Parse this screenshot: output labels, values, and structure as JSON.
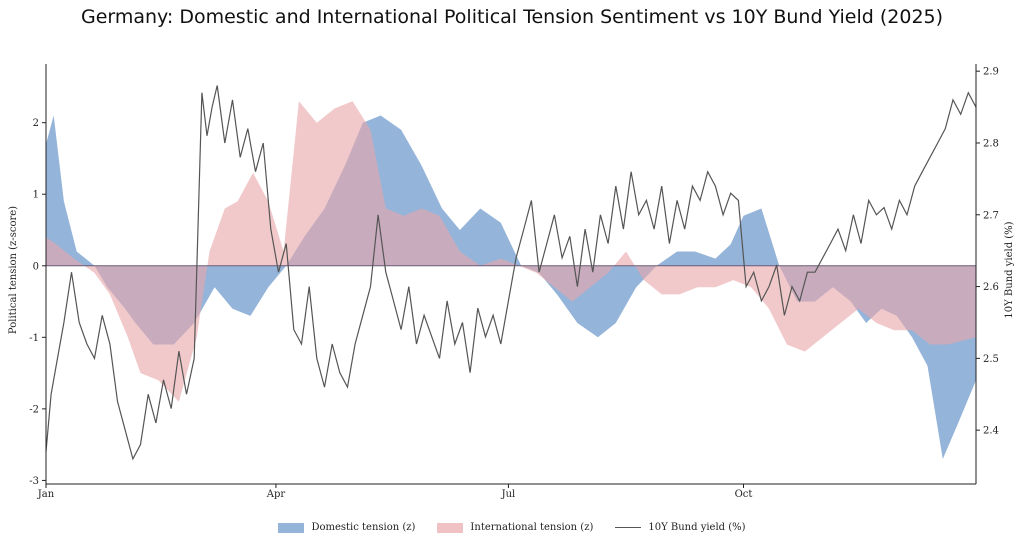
{
  "chart_data": {
    "type": "area",
    "title": "Germany: Domestic and International Political Tension Sentiment vs 10Y Bund Yield (2025)",
    "ylabel": "Political tension (z-score)",
    "y2label": "10Y Bund yield (%)",
    "ylim": [
      -3.05,
      2.82
    ],
    "y2lim": [
      2.325,
      2.91
    ],
    "yticks": [
      "-3",
      "-2",
      "-1",
      "0",
      "1",
      "2"
    ],
    "y2ticks": [
      "2.4",
      "2.5",
      "2.6",
      "2.7",
      "2.8",
      "2.9"
    ],
    "xlim": [
      "2025-01-01",
      "2025-12-31"
    ],
    "xticks": [
      {
        "date": "2025-01-01",
        "label": "Jan"
      },
      {
        "date": "2025-04-01",
        "label": "Apr"
      },
      {
        "date": "2025-07-01",
        "label": "Jul"
      },
      {
        "date": "2025-10-01",
        "label": "Oct"
      }
    ],
    "legend_position": "bottom-center",
    "grid": false,
    "series": [
      {
        "name": "Domestic tension (z)",
        "type": "area",
        "axis": "left",
        "color": "#5b8cc4",
        "x": [
          "2025-01-01",
          "2025-01-04",
          "2025-01-08",
          "2025-01-13",
          "2025-01-20",
          "2025-01-25",
          "2025-02-01",
          "2025-02-05",
          "2025-02-12",
          "2025-02-20",
          "2025-02-28",
          "2025-03-08",
          "2025-03-15",
          "2025-03-22",
          "2025-03-29",
          "2025-04-05",
          "2025-04-12",
          "2025-04-20",
          "2025-04-28",
          "2025-05-05",
          "2025-05-12",
          "2025-05-20",
          "2025-05-28",
          "2025-06-05",
          "2025-06-12",
          "2025-06-20",
          "2025-06-28",
          "2025-07-06",
          "2025-07-13",
          "2025-07-20",
          "2025-07-28",
          "2025-08-05",
          "2025-08-12",
          "2025-08-20",
          "2025-08-28",
          "2025-09-05",
          "2025-09-12",
          "2025-09-20",
          "2025-09-26",
          "2025-10-01",
          "2025-10-08",
          "2025-10-15",
          "2025-10-22",
          "2025-10-29",
          "2025-11-05",
          "2025-11-12",
          "2025-11-18",
          "2025-11-24",
          "2025-11-30",
          "2025-12-06",
          "2025-12-12",
          "2025-12-18",
          "2025-12-24",
          "2025-12-31"
        ],
        "y": [
          1.7,
          2.1,
          0.9,
          0.2,
          0.0,
          -0.3,
          -0.6,
          -0.8,
          -1.1,
          -1.1,
          -0.8,
          -0.3,
          -0.6,
          -0.7,
          -0.3,
          0.0,
          0.4,
          0.8,
          1.4,
          2.0,
          2.1,
          1.9,
          1.4,
          0.8,
          0.5,
          0.8,
          0.6,
          0.0,
          -0.1,
          -0.4,
          -0.8,
          -1.0,
          -0.8,
          -0.3,
          0.0,
          0.2,
          0.2,
          0.1,
          0.3,
          0.7,
          0.8,
          0.0,
          -0.5,
          -0.5,
          -0.3,
          -0.5,
          -0.8,
          -0.6,
          -0.7,
          -1.0,
          -1.4,
          -2.7,
          -2.2,
          -1.6
        ]
      },
      {
        "name": "International tension (z)",
        "type": "area",
        "axis": "left",
        "color": "#e9a8ab",
        "x": [
          "2025-01-01",
          "2025-01-05",
          "2025-01-12",
          "2025-01-20",
          "2025-01-26",
          "2025-02-02",
          "2025-02-07",
          "2025-02-14",
          "2025-02-22",
          "2025-03-01",
          "2025-03-06",
          "2025-03-12",
          "2025-03-17",
          "2025-03-23",
          "2025-03-29",
          "2025-04-04",
          "2025-04-10",
          "2025-04-17",
          "2025-04-24",
          "2025-05-01",
          "2025-05-08",
          "2025-05-14",
          "2025-05-21",
          "2025-05-28",
          "2025-06-04",
          "2025-06-12",
          "2025-06-20",
          "2025-06-28",
          "2025-07-05",
          "2025-07-12",
          "2025-07-19",
          "2025-07-26",
          "2025-08-02",
          "2025-08-09",
          "2025-08-16",
          "2025-08-23",
          "2025-08-30",
          "2025-09-06",
          "2025-09-13",
          "2025-09-20",
          "2025-09-27",
          "2025-10-04",
          "2025-10-11",
          "2025-10-18",
          "2025-10-25",
          "2025-11-01",
          "2025-11-08",
          "2025-11-15",
          "2025-11-22",
          "2025-11-29",
          "2025-12-06",
          "2025-12-13",
          "2025-12-20",
          "2025-12-31"
        ],
        "y": [
          0.4,
          0.3,
          0.1,
          -0.1,
          -0.4,
          -1.0,
          -1.5,
          -1.6,
          -1.9,
          -1.0,
          0.2,
          0.8,
          0.9,
          1.3,
          0.9,
          0.2,
          2.3,
          2.0,
          2.2,
          2.3,
          1.9,
          0.8,
          0.7,
          0.8,
          0.7,
          0.2,
          0.0,
          0.1,
          0.0,
          -0.1,
          -0.3,
          -0.5,
          -0.3,
          -0.1,
          0.2,
          -0.2,
          -0.4,
          -0.4,
          -0.3,
          -0.3,
          -0.2,
          -0.3,
          -0.6,
          -1.1,
          -1.2,
          -1.0,
          -0.8,
          -0.6,
          -0.8,
          -0.9,
          -0.9,
          -1.1,
          -1.1,
          -1.0
        ]
      },
      {
        "name": "10Y Bund yield (%)",
        "type": "line",
        "axis": "right",
        "color": "#555555",
        "x": [
          "2025-01-01",
          "2025-01-03",
          "2025-01-05",
          "2025-01-08",
          "2025-01-11",
          "2025-01-14",
          "2025-01-17",
          "2025-01-20",
          "2025-01-23",
          "2025-01-26",
          "2025-01-29",
          "2025-02-01",
          "2025-02-04",
          "2025-02-07",
          "2025-02-10",
          "2025-02-13",
          "2025-02-16",
          "2025-02-19",
          "2025-02-22",
          "2025-02-25",
          "2025-02-28",
          "2025-03-03",
          "2025-03-05",
          "2025-03-07",
          "2025-03-09",
          "2025-03-12",
          "2025-03-15",
          "2025-03-18",
          "2025-03-21",
          "2025-03-24",
          "2025-03-27",
          "2025-03-30",
          "2025-04-02",
          "2025-04-05",
          "2025-04-08",
          "2025-04-11",
          "2025-04-14",
          "2025-04-17",
          "2025-04-20",
          "2025-04-23",
          "2025-04-26",
          "2025-04-29",
          "2025-05-02",
          "2025-05-05",
          "2025-05-08",
          "2025-05-11",
          "2025-05-14",
          "2025-05-17",
          "2025-05-20",
          "2025-05-23",
          "2025-05-26",
          "2025-05-29",
          "2025-06-01",
          "2025-06-04",
          "2025-06-07",
          "2025-06-10",
          "2025-06-13",
          "2025-06-16",
          "2025-06-19",
          "2025-06-22",
          "2025-06-25",
          "2025-06-28",
          "2025-07-01",
          "2025-07-04",
          "2025-07-07",
          "2025-07-10",
          "2025-07-13",
          "2025-07-16",
          "2025-07-19",
          "2025-07-22",
          "2025-07-25",
          "2025-07-28",
          "2025-07-31",
          "2025-08-03",
          "2025-08-06",
          "2025-08-09",
          "2025-08-12",
          "2025-08-15",
          "2025-08-18",
          "2025-08-21",
          "2025-08-24",
          "2025-08-27",
          "2025-08-30",
          "2025-09-02",
          "2025-09-05",
          "2025-09-08",
          "2025-09-11",
          "2025-09-14",
          "2025-09-17",
          "2025-09-20",
          "2025-09-23",
          "2025-09-26",
          "2025-09-29",
          "2025-10-02",
          "2025-10-05",
          "2025-10-08",
          "2025-10-11",
          "2025-10-14",
          "2025-10-17",
          "2025-10-20",
          "2025-10-23",
          "2025-10-26",
          "2025-10-29",
          "2025-11-01",
          "2025-11-04",
          "2025-11-07",
          "2025-11-10",
          "2025-11-13",
          "2025-11-16",
          "2025-11-19",
          "2025-11-22",
          "2025-11-25",
          "2025-11-28",
          "2025-12-01",
          "2025-12-04",
          "2025-12-07",
          "2025-12-10",
          "2025-12-13",
          "2025-12-16",
          "2025-12-19",
          "2025-12-22",
          "2025-12-25",
          "2025-12-28",
          "2025-12-31"
        ],
        "y": [
          2.37,
          2.45,
          2.49,
          2.55,
          2.62,
          2.55,
          2.52,
          2.5,
          2.56,
          2.52,
          2.44,
          2.4,
          2.36,
          2.38,
          2.45,
          2.41,
          2.47,
          2.43,
          2.51,
          2.45,
          2.5,
          2.87,
          2.81,
          2.85,
          2.88,
          2.8,
          2.86,
          2.78,
          2.82,
          2.76,
          2.8,
          2.68,
          2.62,
          2.66,
          2.54,
          2.52,
          2.6,
          2.5,
          2.46,
          2.52,
          2.48,
          2.46,
          2.52,
          2.56,
          2.6,
          2.7,
          2.62,
          2.58,
          2.54,
          2.6,
          2.52,
          2.56,
          2.53,
          2.5,
          2.58,
          2.52,
          2.55,
          2.48,
          2.57,
          2.53,
          2.56,
          2.52,
          2.58,
          2.64,
          2.68,
          2.72,
          2.62,
          2.66,
          2.7,
          2.64,
          2.67,
          2.6,
          2.68,
          2.62,
          2.7,
          2.66,
          2.74,
          2.68,
          2.76,
          2.7,
          2.72,
          2.68,
          2.74,
          2.66,
          2.72,
          2.68,
          2.74,
          2.72,
          2.76,
          2.74,
          2.7,
          2.73,
          2.72,
          2.6,
          2.62,
          2.58,
          2.6,
          2.63,
          2.56,
          2.6,
          2.58,
          2.62,
          2.62,
          2.64,
          2.66,
          2.68,
          2.65,
          2.7,
          2.66,
          2.72,
          2.7,
          2.71,
          2.68,
          2.72,
          2.7,
          2.74,
          2.76,
          2.78,
          2.8,
          2.82,
          2.86,
          2.84,
          2.87,
          2.85
        ]
      }
    ]
  }
}
